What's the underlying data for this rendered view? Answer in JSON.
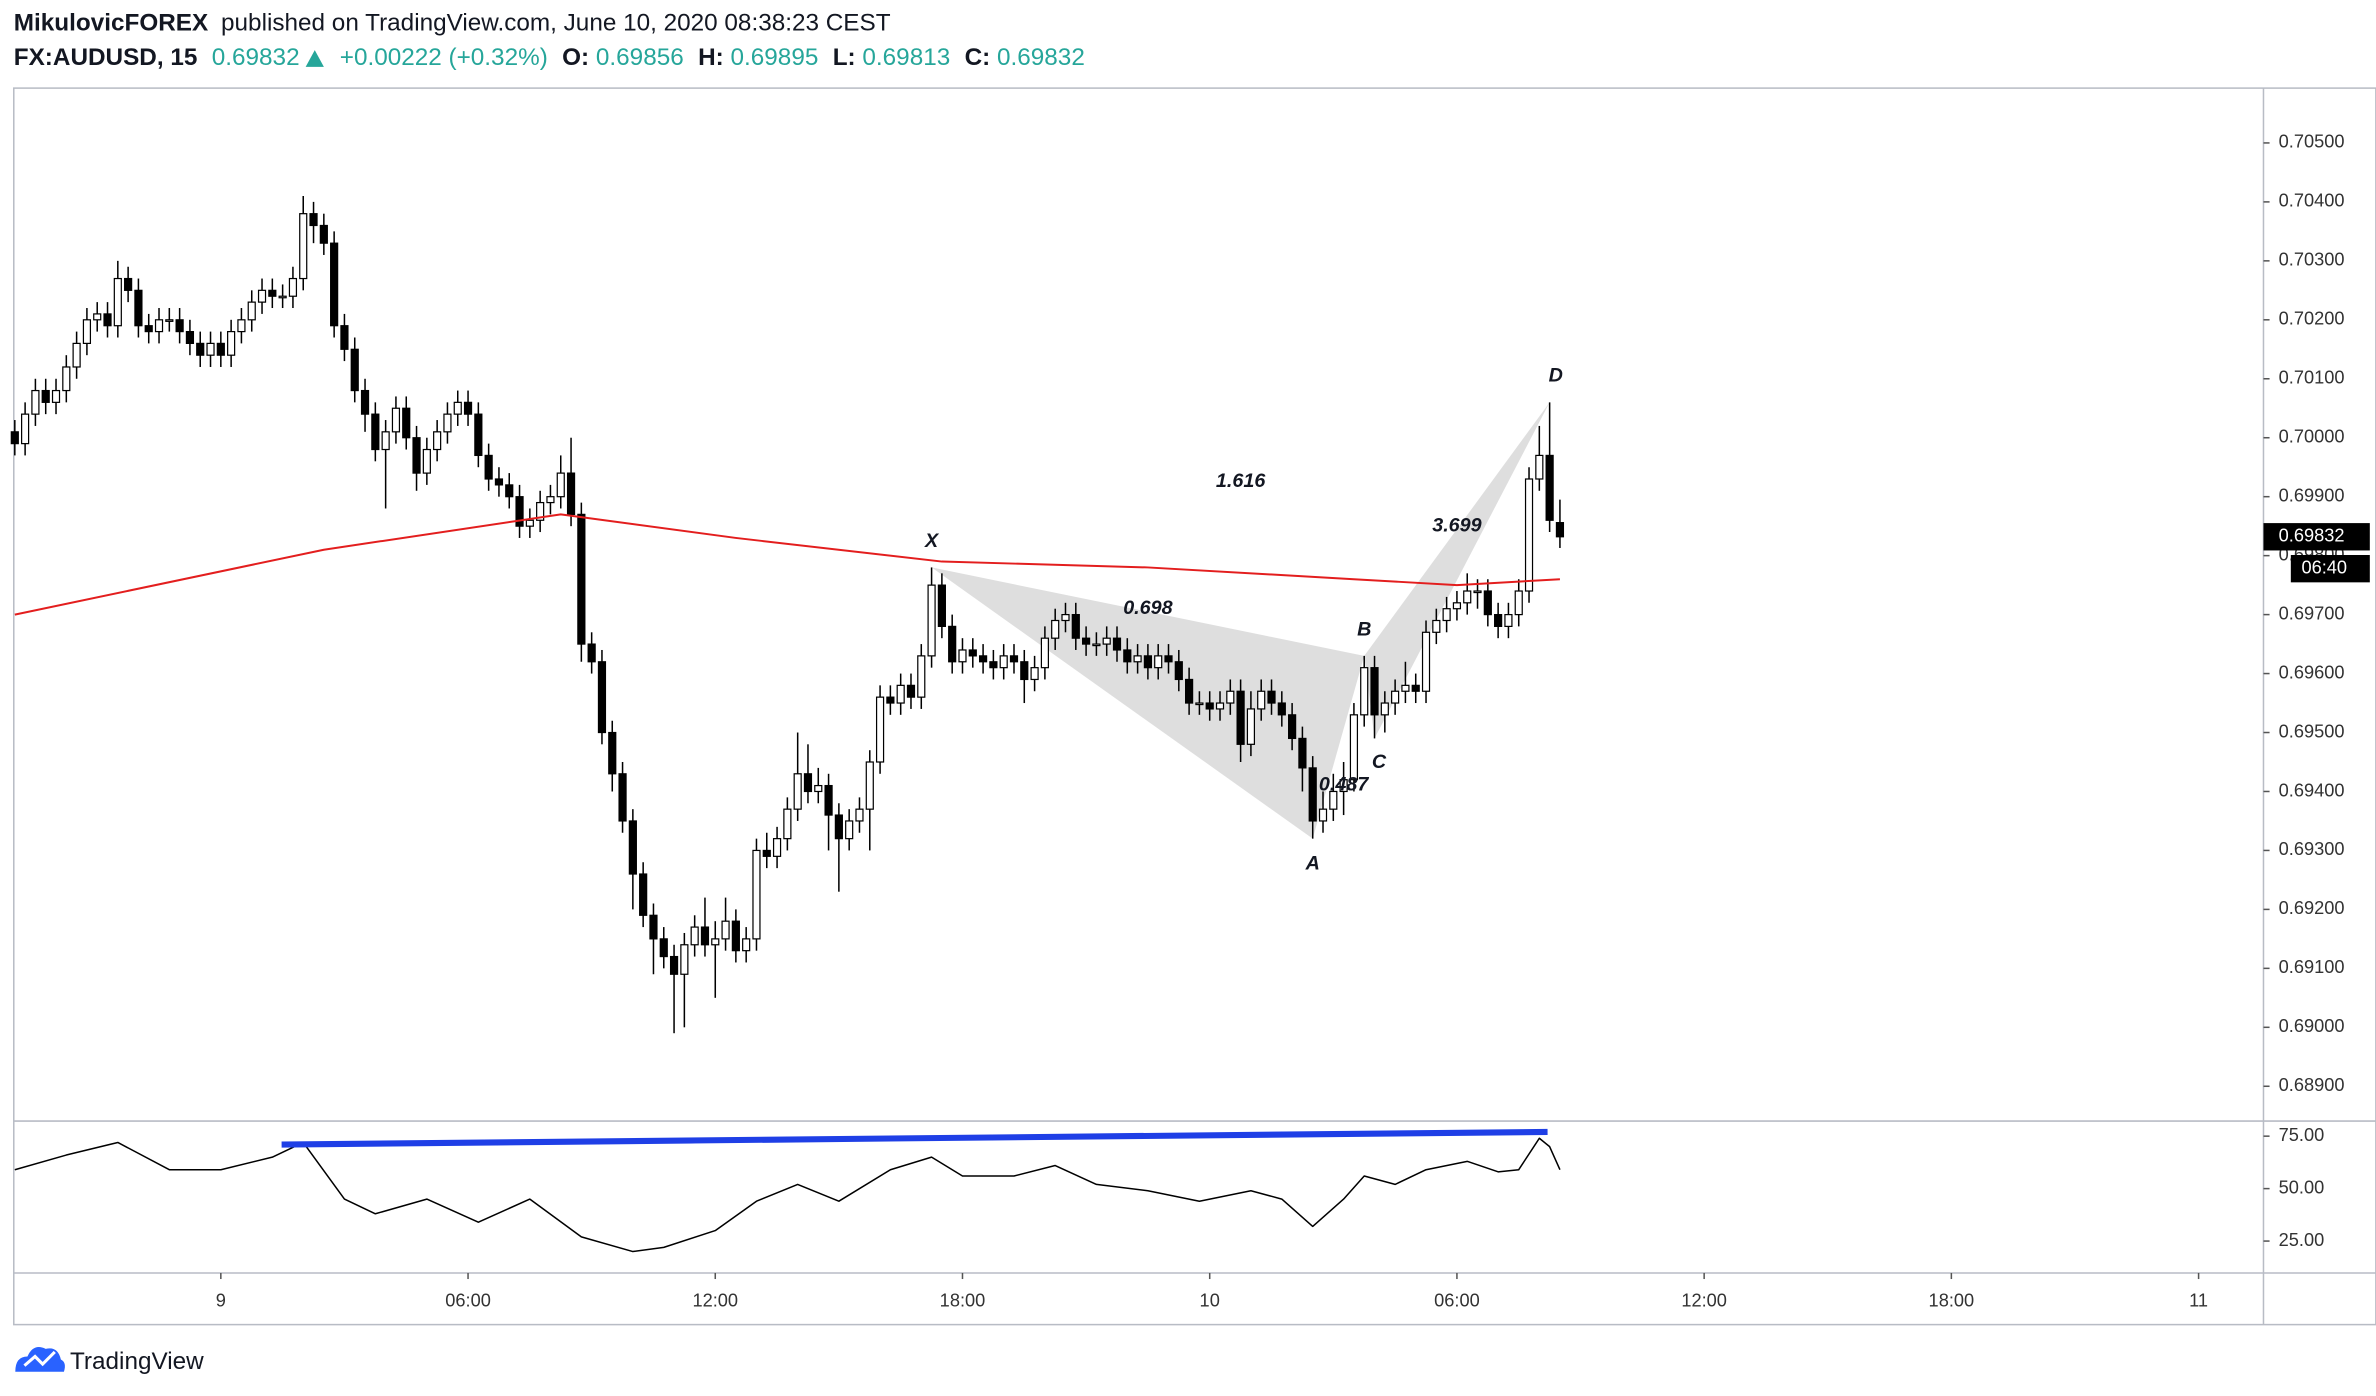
{
  "header": {
    "author": "MikulovicFOREX",
    "published": "published on TradingView.com, June 10, 2020 08:38:23 CEST",
    "symbol": "FX:AUDUSD, 15",
    "last": "0.69832",
    "change": "+0.00222 (+0.32%)",
    "open_label": "O:",
    "open": "0.69856",
    "high_label": "H:",
    "high": "0.69895",
    "low_label": "L:",
    "low": "0.69813",
    "close_label": "C:",
    "close": "0.69832"
  },
  "countdown": "06:40",
  "footer": {
    "logo": "TradingView"
  },
  "chart_data": [
    {
      "type": "candlestick",
      "up_color": "#ffffff",
      "down_color": "#000000",
      "wick_color": "#000000",
      "xlim": [
        -0.1,
        218.3
      ],
      "xticks": [
        {
          "value": 20,
          "label": "9"
        },
        {
          "value": 44,
          "label": "06:00"
        },
        {
          "value": 68,
          "label": "12:00"
        },
        {
          "value": 92,
          "label": "18:00"
        },
        {
          "value": 116,
          "label": "10"
        },
        {
          "value": 140,
          "label": "06:00"
        },
        {
          "value": 164,
          "label": "12:00"
        },
        {
          "value": 188,
          "label": "18:00"
        },
        {
          "value": 212,
          "label": "11"
        }
      ],
      "ylim": [
        0.68841,
        0.70593
      ],
      "yticks": [
        {
          "value": 0.705,
          "label": "0.70500"
        },
        {
          "value": 0.704,
          "label": "0.70400"
        },
        {
          "value": 0.703,
          "label": "0.70300"
        },
        {
          "value": 0.702,
          "label": "0.70200"
        },
        {
          "value": 0.701,
          "label": "0.70100"
        },
        {
          "value": 0.7,
          "label": "0.70000"
        },
        {
          "value": 0.699,
          "label": "0.69900"
        },
        {
          "value": 0.698,
          "label": "0.69800"
        },
        {
          "value": 0.697,
          "label": "0.69700"
        },
        {
          "value": 0.696,
          "label": "0.69600"
        },
        {
          "value": 0.695,
          "label": "0.69500"
        },
        {
          "value": 0.694,
          "label": "0.69400"
        },
        {
          "value": 0.693,
          "label": "0.69300"
        },
        {
          "value": 0.692,
          "label": "0.69200"
        },
        {
          "value": 0.691,
          "label": "0.69100"
        },
        {
          "value": 0.69,
          "label": "0.69000"
        },
        {
          "value": 0.689,
          "label": "0.68900"
        }
      ],
      "open": [
        0.7001,
        0.6999,
        0.7004,
        0.7008,
        0.7006,
        0.7008,
        0.7012,
        0.7016,
        0.702,
        0.7021,
        0.7019,
        0.7027,
        0.7025,
        0.7019,
        0.7018,
        0.702,
        0.702,
        0.7018,
        0.7016,
        0.7014,
        0.7016,
        0.7014,
        0.7018,
        0.702,
        0.7023,
        0.7025,
        0.7024,
        0.7024,
        0.7027,
        0.7038,
        0.7036,
        0.7033,
        0.7019,
        0.7015,
        0.7008,
        0.7004,
        0.6998,
        0.7001,
        0.7005,
        0.7,
        0.6994,
        0.6998,
        0.7001,
        0.7004,
        0.7006,
        0.7004,
        0.6997,
        0.6993,
        0.6992,
        0.699,
        0.6985,
        0.6986,
        0.6989,
        0.699,
        0.6994,
        0.6987,
        0.6965,
        0.6962,
        0.695,
        0.6943,
        0.6935,
        0.6926,
        0.6919,
        0.6915,
        0.6912,
        0.6909,
        0.6914,
        0.6917,
        0.6914,
        0.6915,
        0.6918,
        0.6913,
        0.6915,
        0.693,
        0.6929,
        0.6932,
        0.6937,
        0.6943,
        0.694,
        0.6941,
        0.6936,
        0.6932,
        0.6935,
        0.6937,
        0.6945,
        0.6956,
        0.6955,
        0.6958,
        0.6956,
        0.6963,
        0.6975,
        0.6968,
        0.6962,
        0.6964,
        0.6963,
        0.6962,
        0.6961,
        0.6963,
        0.6962,
        0.6959,
        0.6961,
        0.6966,
        0.6969,
        0.697,
        0.6966,
        0.6965,
        0.6965,
        0.6966,
        0.6964,
        0.6962,
        0.6963,
        0.6961,
        0.6963,
        0.6962,
        0.6959,
        0.6955,
        0.6955,
        0.6954,
        0.6955,
        0.6957,
        0.6948,
        0.6954,
        0.6957,
        0.6955,
        0.6953,
        0.6949,
        0.6944,
        0.6935,
        0.6937,
        0.694,
        0.6942,
        0.6953,
        0.6961,
        0.6953,
        0.6955,
        0.6957,
        0.6958,
        0.6957,
        0.6967,
        0.6969,
        0.6971,
        0.6972,
        0.6974,
        0.6974,
        0.697,
        0.6968,
        0.697,
        0.6974,
        0.6993,
        0.6997,
        0.69856
      ],
      "high": [
        0.7003,
        0.7006,
        0.701,
        0.701,
        0.701,
        0.7014,
        0.7018,
        0.7022,
        0.7023,
        0.7023,
        0.703,
        0.7029,
        0.7027,
        0.7021,
        0.7022,
        0.7022,
        0.7022,
        0.702,
        0.7018,
        0.7018,
        0.7018,
        0.702,
        0.7022,
        0.7025,
        0.7027,
        0.7027,
        0.7026,
        0.7029,
        0.7041,
        0.704,
        0.7038,
        0.7035,
        0.7021,
        0.7017,
        0.701,
        0.7006,
        0.7003,
        0.7007,
        0.7007,
        0.7002,
        0.7,
        0.7003,
        0.7006,
        0.7008,
        0.7008,
        0.7006,
        0.6999,
        0.6995,
        0.6994,
        0.6992,
        0.6988,
        0.6991,
        0.6992,
        0.6997,
        0.7,
        0.6989,
        0.6967,
        0.6964,
        0.6952,
        0.6945,
        0.6937,
        0.6928,
        0.6921,
        0.6917,
        0.6914,
        0.6916,
        0.6919,
        0.6922,
        0.6918,
        0.6922,
        0.692,
        0.6917,
        0.6932,
        0.6933,
        0.6934,
        0.6939,
        0.695,
        0.6948,
        0.6944,
        0.6943,
        0.6938,
        0.6937,
        0.6939,
        0.6947,
        0.6958,
        0.6958,
        0.696,
        0.696,
        0.6965,
        0.6978,
        0.6977,
        0.697,
        0.6966,
        0.6966,
        0.6965,
        0.6964,
        0.6965,
        0.6965,
        0.6964,
        0.6963,
        0.6968,
        0.6971,
        0.6972,
        0.6972,
        0.6968,
        0.6967,
        0.6968,
        0.6968,
        0.6966,
        0.6965,
        0.6965,
        0.6965,
        0.6965,
        0.6964,
        0.6961,
        0.6957,
        0.6957,
        0.6957,
        0.6959,
        0.6959,
        0.6957,
        0.6959,
        0.6959,
        0.6957,
        0.6955,
        0.6951,
        0.6946,
        0.694,
        0.6943,
        0.6945,
        0.6955,
        0.6963,
        0.6963,
        0.6957,
        0.6959,
        0.6962,
        0.696,
        0.6969,
        0.6971,
        0.6973,
        0.6974,
        0.6977,
        0.6976,
        0.6976,
        0.6972,
        0.6972,
        0.6976,
        0.6995,
        0.7002,
        0.7006,
        0.69895
      ],
      "low": [
        0.6997,
        0.6997,
        0.7002,
        0.7004,
        0.7004,
        0.7006,
        0.701,
        0.7014,
        0.7018,
        0.7017,
        0.7017,
        0.7023,
        0.7017,
        0.7016,
        0.7016,
        0.7018,
        0.7016,
        0.7014,
        0.7012,
        0.7012,
        0.7012,
        0.7012,
        0.7016,
        0.7018,
        0.7021,
        0.7022,
        0.7022,
        0.7022,
        0.7025,
        0.7033,
        0.7031,
        0.7017,
        0.7013,
        0.7006,
        0.7001,
        0.6996,
        0.6988,
        0.6999,
        0.6998,
        0.6991,
        0.6992,
        0.6996,
        0.6999,
        0.7002,
        0.7002,
        0.6995,
        0.6991,
        0.699,
        0.6988,
        0.6983,
        0.6983,
        0.6984,
        0.6987,
        0.6988,
        0.6985,
        0.6962,
        0.696,
        0.6948,
        0.694,
        0.6933,
        0.692,
        0.6917,
        0.6909,
        0.691,
        0.6899,
        0.69,
        0.6912,
        0.6912,
        0.6905,
        0.6913,
        0.6911,
        0.6911,
        0.6913,
        0.6927,
        0.6927,
        0.693,
        0.6935,
        0.6938,
        0.6938,
        0.693,
        0.6923,
        0.693,
        0.6933,
        0.693,
        0.6943,
        0.6953,
        0.6953,
        0.6954,
        0.6954,
        0.6961,
        0.6966,
        0.696,
        0.696,
        0.6961,
        0.696,
        0.6959,
        0.6959,
        0.696,
        0.6955,
        0.6957,
        0.6959,
        0.6964,
        0.6967,
        0.6964,
        0.6963,
        0.6963,
        0.6963,
        0.6962,
        0.696,
        0.696,
        0.6959,
        0.6959,
        0.696,
        0.6957,
        0.6953,
        0.6953,
        0.6952,
        0.6952,
        0.6953,
        0.6945,
        0.6946,
        0.6952,
        0.6953,
        0.6951,
        0.6947,
        0.694,
        0.6932,
        0.6933,
        0.6935,
        0.6936,
        0.694,
        0.6951,
        0.6949,
        0.695,
        0.6953,
        0.6955,
        0.6955,
        0.6955,
        0.6965,
        0.6967,
        0.6969,
        0.697,
        0.6971,
        0.6968,
        0.6966,
        0.6966,
        0.6968,
        0.6972,
        0.6991,
        0.6984,
        0.69813
      ],
      "close": [
        0.6999,
        0.7004,
        0.7008,
        0.7006,
        0.7008,
        0.7012,
        0.7016,
        0.702,
        0.7021,
        0.7019,
        0.7027,
        0.7025,
        0.7019,
        0.7018,
        0.702,
        0.702,
        0.7018,
        0.7016,
        0.7014,
        0.7016,
        0.7014,
        0.7018,
        0.702,
        0.7023,
        0.7025,
        0.7024,
        0.7024,
        0.7027,
        0.7038,
        0.7036,
        0.7033,
        0.7019,
        0.7015,
        0.7008,
        0.7004,
        0.6998,
        0.7001,
        0.7005,
        0.7,
        0.6994,
        0.6998,
        0.7001,
        0.7004,
        0.7006,
        0.7004,
        0.6997,
        0.6993,
        0.6992,
        0.699,
        0.6985,
        0.6986,
        0.6989,
        0.699,
        0.6994,
        0.6987,
        0.6965,
        0.6962,
        0.695,
        0.6943,
        0.6935,
        0.6926,
        0.6919,
        0.6915,
        0.6912,
        0.6909,
        0.6914,
        0.6917,
        0.6914,
        0.6915,
        0.6918,
        0.6913,
        0.6915,
        0.693,
        0.6929,
        0.6932,
        0.6937,
        0.6943,
        0.694,
        0.6941,
        0.6936,
        0.6932,
        0.6935,
        0.6937,
        0.6945,
        0.6956,
        0.6955,
        0.6958,
        0.6956,
        0.6963,
        0.6975,
        0.6968,
        0.6962,
        0.6964,
        0.6963,
        0.6962,
        0.6961,
        0.6963,
        0.6962,
        0.6959,
        0.6961,
        0.6966,
        0.6969,
        0.697,
        0.6966,
        0.6965,
        0.6965,
        0.6966,
        0.6964,
        0.6962,
        0.6963,
        0.6961,
        0.6963,
        0.6962,
        0.6959,
        0.6955,
        0.6955,
        0.6954,
        0.6955,
        0.6957,
        0.6948,
        0.6954,
        0.6957,
        0.6955,
        0.6953,
        0.6949,
        0.6944,
        0.6935,
        0.6937,
        0.694,
        0.6942,
        0.6953,
        0.6961,
        0.6953,
        0.6955,
        0.6957,
        0.6958,
        0.6957,
        0.6967,
        0.6969,
        0.6971,
        0.6972,
        0.6974,
        0.6974,
        0.697,
        0.6968,
        0.697,
        0.6974,
        0.6993,
        0.6997,
        0.6986,
        0.69832
      ],
      "ma": {
        "color": "#e31e1e",
        "x": [
          0,
          30,
          53,
          70,
          90,
          110,
          130,
          140,
          150
        ],
        "values": [
          0.697,
          0.6981,
          0.6987,
          0.6983,
          0.6979,
          0.6978,
          0.6976,
          0.6975,
          0.6976
        ]
      },
      "pattern": {
        "fill": "#c8c8c8",
        "points": [
          {
            "label": "X",
            "x": 89,
            "y": 0.6978
          },
          {
            "label": "A",
            "x": 126,
            "y": 0.6932
          },
          {
            "label": "B",
            "x": 131,
            "y": 0.6963
          },
          {
            "label": "C",
            "x": 132,
            "y": 0.6949
          },
          {
            "label": "D",
            "x": 149,
            "y": 0.7006
          }
        ],
        "ratios": [
          0.698,
          1.616,
          3.699,
          0.487
        ]
      }
    },
    {
      "type": "line",
      "color": "#000000",
      "ylim": [
        9.8,
        82.2
      ],
      "yticks": [
        {
          "value": 75,
          "label": "75.00"
        },
        {
          "value": 50,
          "label": "50.00"
        },
        {
          "value": 25,
          "label": "25.00"
        }
      ],
      "x": [
        0,
        5,
        10,
        15,
        20,
        25,
        28,
        32,
        35,
        40,
        45,
        50,
        55,
        60,
        63,
        68,
        72,
        76,
        80,
        85,
        89,
        92,
        97,
        101,
        105,
        110,
        115,
        120,
        123,
        126,
        129,
        131,
        134,
        137,
        141,
        144,
        146,
        148,
        149,
        150
      ],
      "values": [
        59,
        66,
        72,
        59,
        59,
        65,
        72,
        45,
        38,
        45,
        34,
        45,
        27,
        20,
        22,
        30,
        44,
        52,
        44,
        59,
        65,
        56,
        56,
        61,
        52,
        49,
        44,
        49,
        45,
        32,
        45,
        56,
        52,
        59,
        63,
        58,
        59,
        74,
        70,
        59
      ],
      "trendline": {
        "color": "#1f3fe6",
        "x": [
          25.9,
          148.8
        ],
        "values": [
          71,
          77
        ]
      }
    }
  ]
}
